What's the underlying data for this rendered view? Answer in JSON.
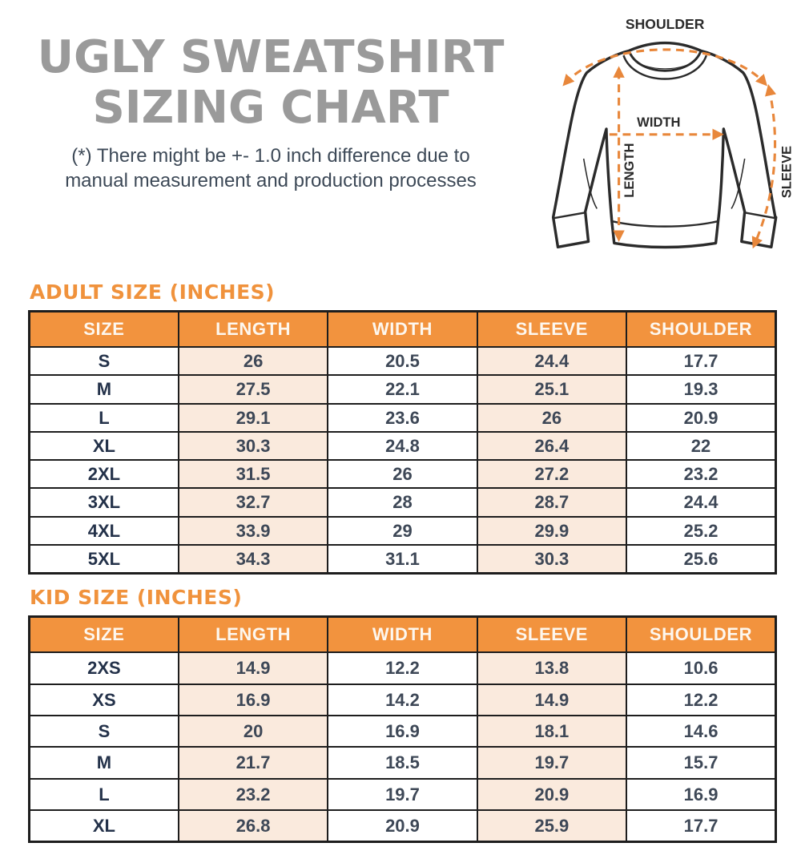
{
  "header": {
    "title_line1": "UGLY SWEATSHIRT",
    "title_line2": "SIZING CHART",
    "disclaimer_line1": "(*) There might be +- 1.0 inch difference due to",
    "disclaimer_line2": "manual measurement and production processes"
  },
  "diagram": {
    "labels": {
      "shoulder": "SHOULDER",
      "width": "WIDTH",
      "length": "LENGTH",
      "sleeve": "SLEEVE"
    }
  },
  "chart_data": [
    {
      "type": "table",
      "title": "ADULT SIZE (INCHES)",
      "columns": [
        "SIZE",
        "LENGTH",
        "WIDTH",
        "SLEEVE",
        "SHOULDER"
      ],
      "rows": [
        [
          "S",
          "26",
          "20.5",
          "24.4",
          "17.7"
        ],
        [
          "M",
          "27.5",
          "22.1",
          "25.1",
          "19.3"
        ],
        [
          "L",
          "29.1",
          "23.6",
          "26",
          "20.9"
        ],
        [
          "XL",
          "30.3",
          "24.8",
          "26.4",
          "22"
        ],
        [
          "2XL",
          "31.5",
          "26",
          "27.2",
          "23.2"
        ],
        [
          "3XL",
          "32.7",
          "28",
          "28.7",
          "24.4"
        ],
        [
          "4XL",
          "33.9",
          "29",
          "29.9",
          "25.2"
        ],
        [
          "5XL",
          "34.3",
          "31.1",
          "30.3",
          "25.6"
        ]
      ]
    },
    {
      "type": "table",
      "title": "KID SIZE (INCHES)",
      "columns": [
        "SIZE",
        "LENGTH",
        "WIDTH",
        "SLEEVE",
        "SHOULDER"
      ],
      "rows": [
        [
          "2XS",
          "14.9",
          "12.2",
          "13.8",
          "10.6"
        ],
        [
          "XS",
          "16.9",
          "14.2",
          "14.9",
          "12.2"
        ],
        [
          "S",
          "20",
          "16.9",
          "18.1",
          "14.6"
        ],
        [
          "M",
          "21.7",
          "18.5",
          "19.7",
          "15.7"
        ],
        [
          "L",
          "23.2",
          "19.7",
          "20.9",
          "16.9"
        ],
        [
          "XL",
          "26.8",
          "20.9",
          "25.9",
          "17.7"
        ]
      ]
    }
  ],
  "colors": {
    "accent_orange": "#F2933E",
    "section_title_orange": "#F0923C",
    "cell_peach": "#FAEADD",
    "title_gray": "#9A9A9A",
    "text_dark": "#3E4857",
    "size_text_navy": "#24324A",
    "arrow_orange": "#E8873B",
    "border_dark": "#1D1D1D",
    "header_text": "#FDF7EF"
  }
}
